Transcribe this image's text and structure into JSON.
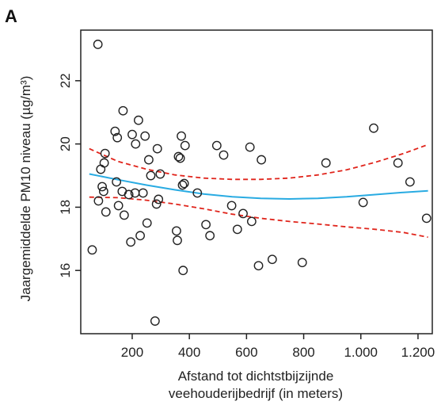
{
  "panel_label": "A",
  "chart_data": {
    "type": "scatter",
    "title": "",
    "xlabel_line1": "Afstand tot dichtstbijzijnde",
    "xlabel_line2": "veehouderijbedrijf (in meters)",
    "ylabel": "Jaargemiddelde PM10 niveau (µg/m³)",
    "xlim": [
      20,
      1250
    ],
    "ylim": [
      14.0,
      23.6
    ],
    "x_ticks": [
      200,
      400,
      600,
      800,
      1000,
      1200
    ],
    "x_tick_labels": [
      "200",
      "400",
      "600",
      "800",
      "1.000",
      "1.200"
    ],
    "y_ticks": [
      16,
      18,
      20,
      22
    ],
    "y_tick_labels": [
      "16",
      "18",
      "20",
      "22"
    ],
    "grid": false,
    "colors": {
      "points": "#222222",
      "fit": "#29abe2",
      "ci": "#e0241b"
    },
    "points": [
      {
        "x": 60,
        "y": 16.65
      },
      {
        "x": 80,
        "y": 23.15
      },
      {
        "x": 82,
        "y": 18.2
      },
      {
        "x": 90,
        "y": 19.2
      },
      {
        "x": 95,
        "y": 18.65
      },
      {
        "x": 100,
        "y": 18.5
      },
      {
        "x": 102,
        "y": 19.4
      },
      {
        "x": 105,
        "y": 19.7
      },
      {
        "x": 108,
        "y": 17.85
      },
      {
        "x": 140,
        "y": 20.4
      },
      {
        "x": 145,
        "y": 18.8
      },
      {
        "x": 148,
        "y": 20.2
      },
      {
        "x": 152,
        "y": 18.05
      },
      {
        "x": 165,
        "y": 18.5
      },
      {
        "x": 168,
        "y": 21.05
      },
      {
        "x": 172,
        "y": 17.75
      },
      {
        "x": 188,
        "y": 18.4
      },
      {
        "x": 195,
        "y": 16.9
      },
      {
        "x": 200,
        "y": 20.3
      },
      {
        "x": 210,
        "y": 18.45
      },
      {
        "x": 212,
        "y": 20.0
      },
      {
        "x": 222,
        "y": 20.75
      },
      {
        "x": 228,
        "y": 17.1
      },
      {
        "x": 238,
        "y": 18.45
      },
      {
        "x": 245,
        "y": 20.25
      },
      {
        "x": 252,
        "y": 17.5
      },
      {
        "x": 258,
        "y": 19.5
      },
      {
        "x": 265,
        "y": 19.0
      },
      {
        "x": 280,
        "y": 14.4
      },
      {
        "x": 285,
        "y": 18.1
      },
      {
        "x": 288,
        "y": 19.85
      },
      {
        "x": 292,
        "y": 18.25
      },
      {
        "x": 298,
        "y": 19.05
      },
      {
        "x": 355,
        "y": 17.25
      },
      {
        "x": 358,
        "y": 16.95
      },
      {
        "x": 362,
        "y": 19.6
      },
      {
        "x": 368,
        "y": 19.55
      },
      {
        "x": 372,
        "y": 20.25
      },
      {
        "x": 376,
        "y": 18.7
      },
      {
        "x": 378,
        "y": 16.0
      },
      {
        "x": 382,
        "y": 18.75
      },
      {
        "x": 385,
        "y": 19.95
      },
      {
        "x": 428,
        "y": 18.45
      },
      {
        "x": 458,
        "y": 17.45
      },
      {
        "x": 472,
        "y": 17.1
      },
      {
        "x": 496,
        "y": 19.95
      },
      {
        "x": 520,
        "y": 19.65
      },
      {
        "x": 548,
        "y": 18.05
      },
      {
        "x": 568,
        "y": 17.3
      },
      {
        "x": 588,
        "y": 17.8
      },
      {
        "x": 612,
        "y": 19.9
      },
      {
        "x": 618,
        "y": 17.55
      },
      {
        "x": 642,
        "y": 16.15
      },
      {
        "x": 652,
        "y": 19.5
      },
      {
        "x": 690,
        "y": 16.35
      },
      {
        "x": 795,
        "y": 16.25
      },
      {
        "x": 878,
        "y": 19.4
      },
      {
        "x": 1008,
        "y": 18.15
      },
      {
        "x": 1045,
        "y": 20.5
      },
      {
        "x": 1130,
        "y": 19.4
      },
      {
        "x": 1172,
        "y": 18.8
      },
      {
        "x": 1230,
        "y": 17.65
      }
    ],
    "fit": {
      "x": [
        50,
        150,
        250,
        350,
        450,
        550,
        650,
        750,
        850,
        950,
        1050,
        1150,
        1235
      ],
      "y": [
        19.05,
        18.87,
        18.7,
        18.55,
        18.42,
        18.33,
        18.28,
        18.26,
        18.28,
        18.33,
        18.4,
        18.47,
        18.52
      ]
    },
    "ci_upper": {
      "x": [
        50,
        150,
        250,
        350,
        450,
        550,
        650,
        750,
        850,
        950,
        1050,
        1150,
        1235
      ],
      "y": [
        19.85,
        19.45,
        19.2,
        19.02,
        18.92,
        18.88,
        18.88,
        18.92,
        19.02,
        19.18,
        19.42,
        19.7,
        19.98
      ]
    },
    "ci_lower": {
      "x": [
        50,
        150,
        250,
        350,
        450,
        550,
        650,
        750,
        850,
        950,
        1050,
        1150,
        1235
      ],
      "y": [
        18.32,
        18.3,
        18.22,
        18.1,
        17.95,
        17.78,
        17.65,
        17.55,
        17.47,
        17.38,
        17.3,
        17.2,
        17.05
      ]
    }
  }
}
